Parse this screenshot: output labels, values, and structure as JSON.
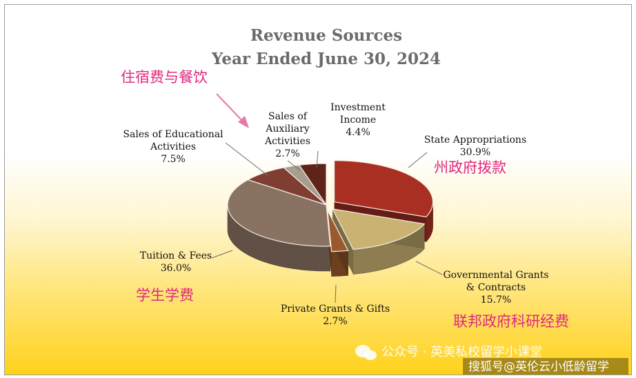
{
  "chart_data": {
    "type": "pie",
    "title": "Revenue Sources",
    "subtitle": "Year Ended June 30, 2024",
    "slices": [
      {
        "label": [
          "State Appropriations"
        ],
        "value": 30.9,
        "value_text": "30.9%",
        "color": "#a92f22",
        "exploded": true
      },
      {
        "label": [
          "Governmental Grants",
          "& Contracts"
        ],
        "value": 15.7,
        "value_text": "15.7%",
        "color": "#c9b272",
        "exploded": true
      },
      {
        "label": [
          "Private Grants & Gifts"
        ],
        "value": 2.7,
        "value_text": "2.7%",
        "color": "#9a5a2d",
        "exploded": true
      },
      {
        "label": [
          "Tuition & Fees"
        ],
        "value": 36.0,
        "value_text": "36.0%",
        "color": "#8a7263",
        "exploded": false
      },
      {
        "label": [
          "Sales of Educational",
          "Activities"
        ],
        "value": 7.5,
        "value_text": "7.5%",
        "color": "#7e3e32",
        "exploded": false
      },
      {
        "label": [
          "Sales of",
          "Auxiliary",
          "Activities"
        ],
        "value": 2.7,
        "value_text": "2.7%",
        "color": "#a89d8f",
        "exploded": false
      },
      {
        "label": [
          "Investment",
          "Income"
        ],
        "value": 4.4,
        "value_text": "4.4%",
        "color": "#5e2419",
        "exploded": false
      }
    ]
  },
  "annotations": {
    "auxiliary": "住宿费与餐饮",
    "state": "州政府拨款",
    "tuition": "学生学费",
    "federal": "联邦政府科研经费"
  },
  "watermark": {
    "channel": "公众号 · 英美私校留学小课堂",
    "source": "搜狐号@英伦云小低龄留学"
  }
}
